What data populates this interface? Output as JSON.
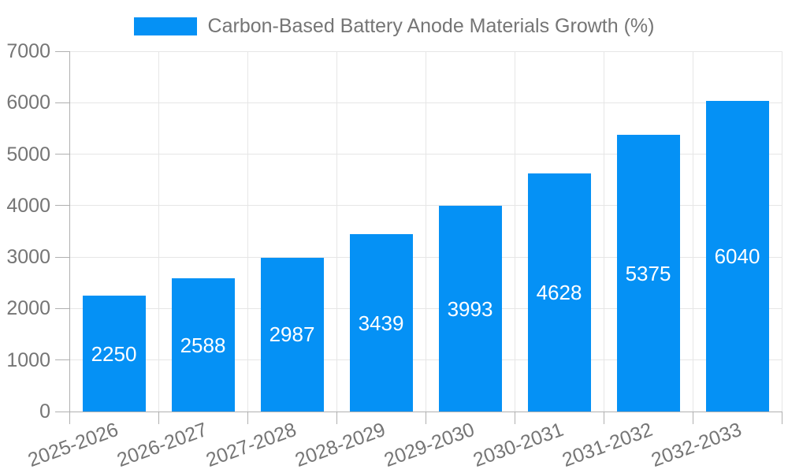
{
  "legend": {
    "series_label": "Carbon-Based Battery Anode Materials Growth (%)"
  },
  "chart_data": {
    "type": "bar",
    "title": "Carbon-Based Battery Anode Materials Growth (%)",
    "categories": [
      "2025-2026",
      "2026-2027",
      "2027-2028",
      "2028-2029",
      "2029-2030",
      "2030-2031",
      "2031-2032",
      "2032-2033"
    ],
    "values": [
      2250,
      2588,
      2987,
      3439,
      3993,
      4628,
      5375,
      6040
    ],
    "xlabel": "",
    "ylabel": "",
    "ylim": [
      0,
      7000
    ],
    "yticks": [
      0,
      1000,
      2000,
      3000,
      4000,
      5000,
      6000,
      7000
    ],
    "grid": true,
    "legend_position": "top-center",
    "x_label_rotation_deg": -20,
    "value_label_position": "inside-center",
    "colors": {
      "bar": "#0591f5",
      "value_label": "#ffffff",
      "axis_text": "#757575",
      "gridline": "#e6e6e6",
      "axis_line": "#b0b0b0",
      "background": "#ffffff"
    }
  }
}
